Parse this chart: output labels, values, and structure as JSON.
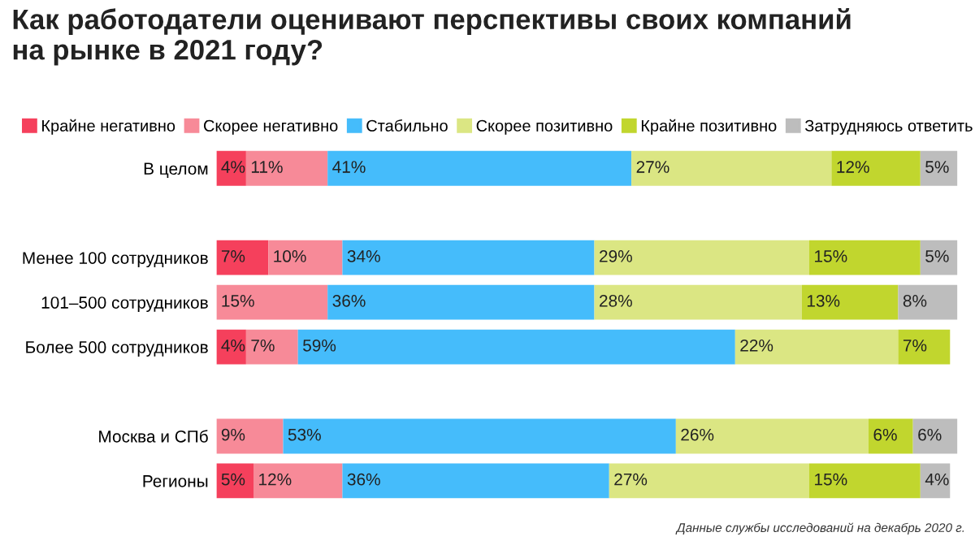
{
  "chart_data": {
    "type": "bar",
    "orientation": "horizontal",
    "stacked": true,
    "title": "Как работодатели оценивают перспективы своих компаний\nна рынке в 2021 году?",
    "categories": [
      "В целом",
      null,
      "Менее 100 сотрудников",
      "101–500 сотрудников",
      "Более 500 сотрудников",
      null,
      "Москва и СПб",
      "Регионы"
    ],
    "series": [
      {
        "name": "Крайне негативно",
        "color": "#f5405c",
        "values": [
          4,
          null,
          7,
          null,
          4,
          null,
          null,
          5
        ],
        "value_labels": [
          "4%",
          null,
          "7%",
          null,
          "4%",
          null,
          null,
          "5%"
        ]
      },
      {
        "name": "Скорее негативно",
        "color": "#f78a98",
        "values": [
          11,
          null,
          10,
          15,
          7,
          null,
          9,
          12
        ],
        "value_labels": [
          "11%",
          null,
          "10%",
          "15%",
          "7%",
          null,
          "9%",
          "12%"
        ]
      },
      {
        "name": "Стабильно",
        "color": "#45bcfb",
        "values": [
          41,
          null,
          34,
          36,
          59,
          null,
          53,
          36
        ],
        "value_labels": [
          "41%",
          null,
          "34%",
          "36%",
          "59%",
          null,
          "53%",
          "36%"
        ]
      },
      {
        "name": "Скорее позитивно",
        "color": "#dbe683",
        "values": [
          27,
          null,
          29,
          28,
          22,
          null,
          26,
          27
        ],
        "value_labels": [
          "27%",
          null,
          "29%",
          "28%",
          "22%",
          null,
          "26%",
          "27%"
        ]
      },
      {
        "name": "Крайне позитивно",
        "color": "#c1d62e",
        "values": [
          12,
          null,
          15,
          13,
          7,
          null,
          6,
          15
        ],
        "value_labels": [
          "12%",
          null,
          "15%",
          "13%",
          "7%",
          null,
          "6%",
          "15%"
        ]
      },
      {
        "name": "Затрудняюсь ответить",
        "color": "#bdbdbd",
        "values": [
          5,
          null,
          5,
          8,
          null,
          null,
          6,
          4
        ],
        "value_labels": [
          "5%",
          null,
          "5%",
          "8%",
          null,
          null,
          "6%",
          "4%"
        ]
      }
    ],
    "xlim": [
      0,
      100
    ],
    "tick_labels": "y",
    "legend": "top",
    "grid": false,
    "annotations": [
      "Данные службы исследований на декабрь 2020 г."
    ]
  }
}
